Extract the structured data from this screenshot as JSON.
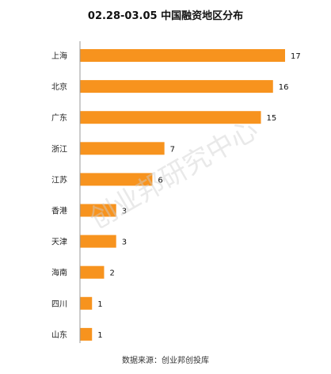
{
  "chart_data": {
    "type": "bar",
    "orientation": "horizontal",
    "title": "02.28-03.05 中国融资地区分布",
    "categories": [
      "上海",
      "北京",
      "广东",
      "浙江",
      "江苏",
      "香港",
      "天津",
      "海南",
      "四川",
      "山东"
    ],
    "values": [
      17,
      16,
      15,
      7,
      6,
      3,
      3,
      2,
      1,
      1
    ],
    "xlim": [
      0,
      17
    ],
    "grid": false,
    "legend": "none",
    "bar_color": "#F7931E",
    "axis_color": "#999999"
  },
  "source_note": "数据来源：创业邦创投库",
  "watermark": "创业邦研究中心"
}
